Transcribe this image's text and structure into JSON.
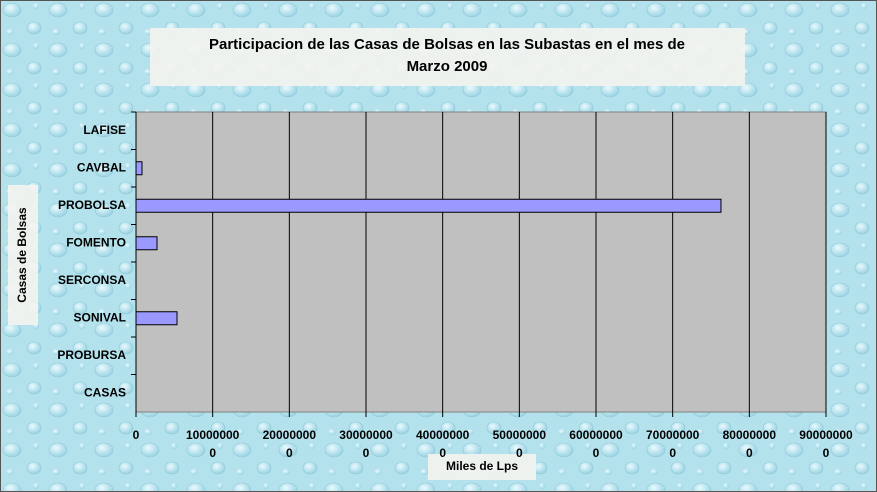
{
  "chart_data": {
    "type": "bar",
    "orientation": "horizontal",
    "title": [
      "Participacion de las Casas de Bolsas en las Subastas en el mes de",
      "Marzo 2009"
    ],
    "x_label": "Miles de Lps",
    "y_label": "Casas de Bolsas",
    "categories": [
      "LAFISE",
      "CAVBAL",
      "PROBOLSA",
      "FOMENTO",
      "SERCONSA",
      "SONIVAL",
      "PROBURSA",
      "CASAS"
    ],
    "values": [
      0,
      7800000,
      763000000,
      27400000,
      0,
      53500000,
      0,
      0
    ],
    "color": "#9999ff",
    "xlim": [
      0,
      900000000
    ],
    "xticks": [
      0,
      100000000,
      200000000,
      300000000,
      400000000,
      500000000,
      600000000,
      700000000,
      800000000,
      900000000
    ],
    "grid": true
  }
}
